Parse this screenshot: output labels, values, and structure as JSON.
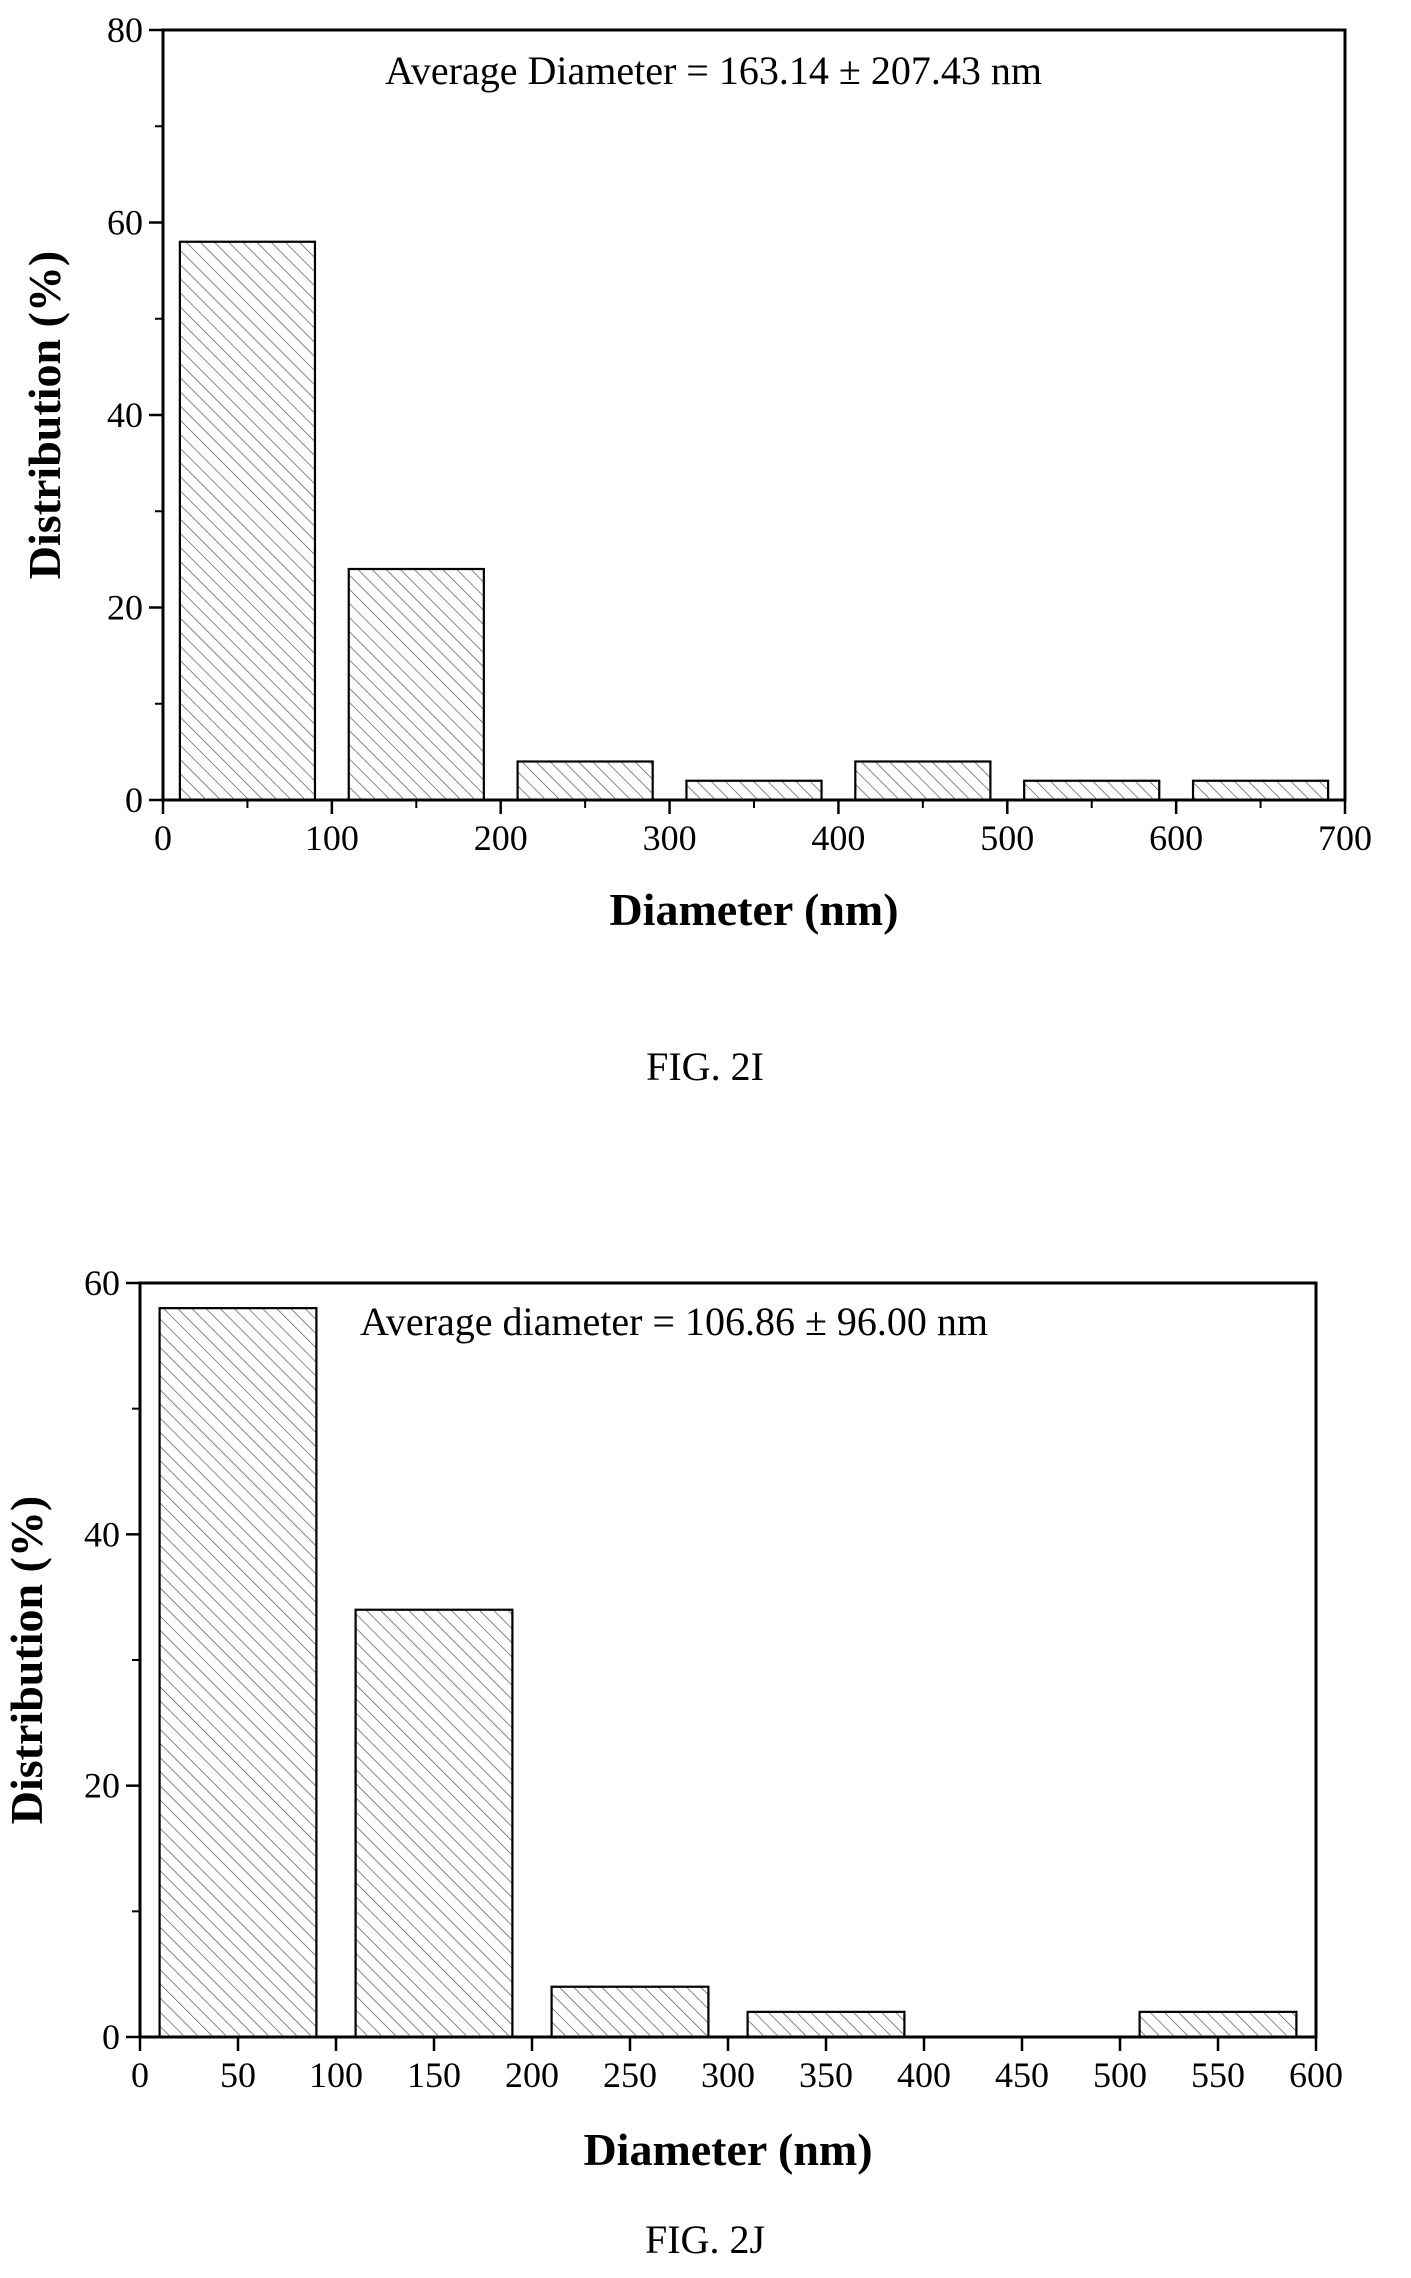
{
  "chart_data": [
    {
      "type": "bar",
      "figure_label": "FIG. 2I",
      "annotation": "Average Diameter = 163.14 ± 207.43 nm",
      "xlabel": "Diameter (nm)",
      "ylabel": "Distribution (%)",
      "xlim": [
        0,
        700
      ],
      "ylim": [
        0,
        80
      ],
      "x_ticks": [
        0,
        100,
        200,
        300,
        400,
        500,
        600,
        700
      ],
      "y_ticks": [
        0,
        20,
        40,
        60,
        80
      ],
      "bin_width": 80,
      "bins": [
        {
          "center": 50,
          "value": 58
        },
        {
          "center": 150,
          "value": 24
        },
        {
          "center": 250,
          "value": 4
        },
        {
          "center": 350,
          "value": 2
        },
        {
          "center": 450,
          "value": 4
        },
        {
          "center": 550,
          "value": 2
        },
        {
          "center": 650,
          "value": 2
        }
      ],
      "fill_pattern": "diagonal-hatch",
      "grid": false
    },
    {
      "type": "bar",
      "figure_label": "FIG. 2J",
      "annotation": "Average diameter = 106.86 ± 96.00 nm",
      "xlabel": "Diameter (nm)",
      "ylabel": "Distribution (%)",
      "xlim": [
        0,
        600
      ],
      "ylim": [
        0,
        60
      ],
      "x_ticks": [
        0,
        50,
        100,
        150,
        200,
        250,
        300,
        350,
        400,
        450,
        500,
        550,
        600
      ],
      "y_ticks": [
        0,
        20,
        40,
        60
      ],
      "bin_width": 80,
      "bins": [
        {
          "center": 50,
          "value": 58
        },
        {
          "center": 150,
          "value": 34
        },
        {
          "center": 250,
          "value": 4
        },
        {
          "center": 350,
          "value": 2
        },
        {
          "center": 550,
          "value": 2
        }
      ],
      "fill_pattern": "diagonal-hatch",
      "grid": false
    }
  ]
}
